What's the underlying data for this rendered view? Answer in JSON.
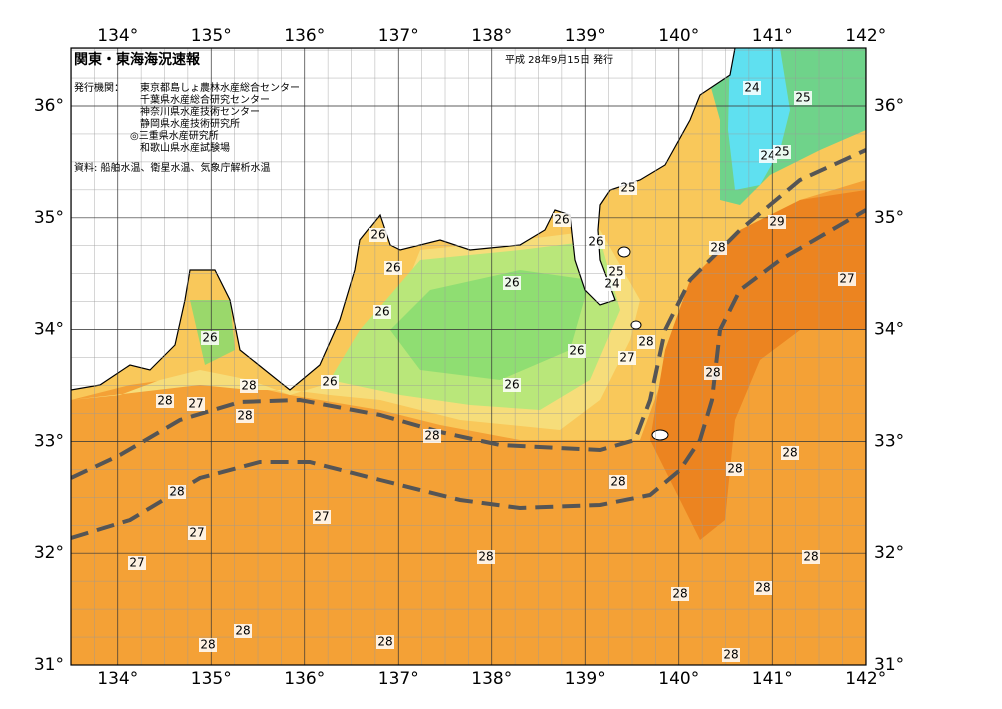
{
  "header": {
    "title": "関東・東海海況速報",
    "date": "平成 28年9月15日 発行"
  },
  "issuers": {
    "label": "発行機関：",
    "items": [
      "東京都島しょ農林水産総合センター",
      "千葉県水産総合研究センター",
      "神奈川県水産技術センター",
      "静岡県水産技術研究所",
      "◎三重県水産研究所",
      "和歌山県水産試験場"
    ]
  },
  "source": "資料: 船舶水温、衛星水温、気象庁解析水温",
  "map": {
    "longitudes": [
      {
        "value": 134,
        "label": "134°"
      },
      {
        "value": 135,
        "label": "135°"
      },
      {
        "value": 136,
        "label": "136°"
      },
      {
        "value": 137,
        "label": "137°"
      },
      {
        "value": 138,
        "label": "138°"
      },
      {
        "value": 139,
        "label": "139°"
      },
      {
        "value": 140,
        "label": "140°"
      },
      {
        "value": 141,
        "label": "141°"
      },
      {
        "value": 142,
        "label": "142°"
      }
    ],
    "latitudes": [
      {
        "value": 31,
        "label": "31°"
      },
      {
        "value": 32,
        "label": "32°"
      },
      {
        "value": 33,
        "label": "33°"
      },
      {
        "value": 34,
        "label": "34°"
      },
      {
        "value": 35,
        "label": "35°"
      },
      {
        "value": 36,
        "label": "36°"
      }
    ],
    "isotherms": [
      24,
      25,
      24,
      25,
      25,
      26,
      29,
      26,
      26,
      28,
      26,
      25,
      24,
      27,
      26,
      26,
      26,
      28,
      26,
      27,
      28,
      26,
      28,
      26,
      28,
      27,
      28,
      28,
      28,
      28,
      28,
      28,
      27,
      27,
      28,
      28,
      27,
      28,
      28,
      28,
      28,
      28,
      28
    ]
  }
}
